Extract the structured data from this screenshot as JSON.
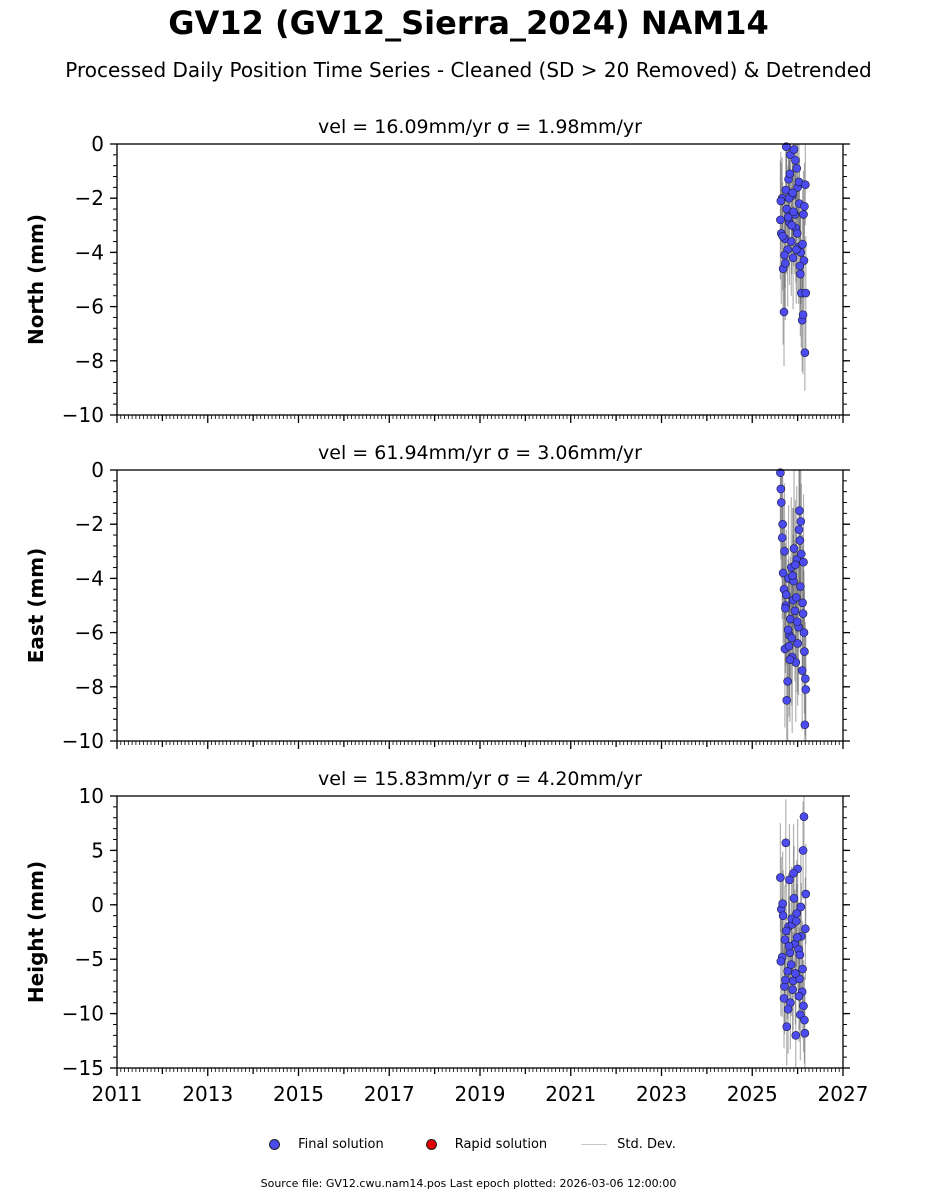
{
  "title": "GV12 (GV12_Sierra_2024) NAM14",
  "subtitle": "Processed Daily Position Time Series - Cleaned (SD > 20 Removed) & Detrended",
  "colors": {
    "final": "#4b4bf0",
    "rapid": "#e00000",
    "stddev": "#c8c8c8",
    "errbar": "#555555"
  },
  "legend": {
    "final": "Final solution",
    "rapid": "Rapid solution",
    "stddev": "Std. Dev."
  },
  "footer": "Source file: GV12.cwu.nam14.pos  Last epoch plotted: 2026-03-06 12:00:00",
  "chart_data": [
    {
      "type": "scatter",
      "panel_title": "vel = 16.09mm/yr   σ = 1.98mm/yr",
      "ylabel": "North (mm)",
      "xlim": [
        2011,
        2027
      ],
      "ylim": [
        -10,
        0
      ],
      "yticks": [
        0,
        -2,
        -4,
        -6,
        -8,
        -10
      ],
      "ytick_labels": [
        "0",
        "−2",
        "−4",
        "−6",
        "−8",
        "−10"
      ],
      "series": [
        {
          "x": [
            2025.62,
            2025.64,
            2025.66,
            2025.68,
            2025.7,
            2025.72,
            2025.74,
            2025.76,
            2025.78,
            2025.8,
            2025.82,
            2025.84,
            2025.86,
            2025.88,
            2025.9,
            2025.92,
            2025.94,
            2025.96,
            2025.98,
            2026.0,
            2026.02,
            2026.04,
            2026.06,
            2026.08,
            2026.1,
            2026.12,
            2026.14,
            2026.16,
            2026.18,
            2025.63,
            2025.67,
            2025.71,
            2025.75,
            2025.79,
            2025.83,
            2025.87,
            2025.91,
            2025.95,
            2025.99,
            2026.03,
            2026.07,
            2026.11,
            2026.15,
            2026.17,
            2025.73,
            2025.81,
            2025.89,
            2025.97,
            2026.05,
            2026.13
          ],
          "y": [
            -2.8,
            -3.3,
            -2.0,
            -4.6,
            -6.2,
            -3.5,
            -1.7,
            -2.4,
            -3.9,
            -1.3,
            -2.9,
            -0.4,
            -3.6,
            -1.9,
            -4.2,
            -0.2,
            -2.6,
            -3.1,
            -0.9,
            -1.6,
            -3.8,
            -2.2,
            -4.8,
            -5.5,
            -6.5,
            -6.3,
            -4.3,
            -7.7,
            -5.5,
            -2.1,
            -3.4,
            -4.1,
            -0.1,
            -2.7,
            -1.1,
            -3.0,
            -2.5,
            -0.6,
            -3.3,
            -1.4,
            -4.0,
            -3.7,
            -2.3,
            -1.5,
            -4.4,
            -2.0,
            -1.8,
            -3.9,
            -4.5,
            -2.6
          ],
          "sd": [
            2.2,
            2.6,
            1.5,
            2.8,
            2.0,
            1.8,
            1.9,
            2.4,
            2.1,
            1.6,
            2.3,
            1.4,
            2.0,
            1.7,
            1.9,
            1.5,
            2.2,
            2.0,
            1.8,
            1.6,
            2.1,
            1.7,
            2.3,
            2.0,
            1.9,
            2.2,
            1.8,
            1.4,
            2.1,
            1.8,
            2.0,
            2.2,
            1.5,
            1.9,
            1.7,
            1.8,
            2.0,
            1.6,
            2.1,
            1.7,
            1.9,
            2.0,
            1.6,
            1.5,
            2.1,
            1.8,
            1.7,
            2.0,
            1.9,
            1.6
          ]
        }
      ]
    },
    {
      "type": "scatter",
      "panel_title": "vel = 61.94mm/yr   σ = 3.06mm/yr",
      "ylabel": "East (mm)",
      "xlim": [
        2011,
        2027
      ],
      "ylim": [
        -10,
        0
      ],
      "yticks": [
        0,
        -2,
        -4,
        -6,
        -8,
        -10
      ],
      "ytick_labels": [
        "0",
        "−2",
        "−4",
        "−6",
        "−8",
        "−10"
      ],
      "series": [
        {
          "x": [
            2025.62,
            2025.64,
            2025.66,
            2025.68,
            2025.7,
            2025.72,
            2025.74,
            2025.76,
            2025.78,
            2025.8,
            2025.82,
            2025.84,
            2025.86,
            2025.88,
            2025.9,
            2025.92,
            2025.94,
            2025.96,
            2025.98,
            2026.0,
            2026.02,
            2026.04,
            2026.06,
            2026.08,
            2026.1,
            2026.12,
            2026.14,
            2026.16,
            2026.18,
            2025.63,
            2025.67,
            2025.71,
            2025.75,
            2025.79,
            2025.83,
            2025.87,
            2025.91,
            2025.95,
            2025.99,
            2026.03,
            2026.07,
            2026.11,
            2026.15,
            2026.17,
            2025.73,
            2025.81,
            2025.89,
            2025.97,
            2026.05,
            2026.13
          ],
          "y": [
            -0.1,
            -1.2,
            -2.5,
            -3.8,
            -4.4,
            -6.6,
            -5.0,
            -8.5,
            -7.8,
            -4.0,
            -6.1,
            -5.5,
            -3.6,
            -6.9,
            -4.8,
            -2.9,
            -5.2,
            -7.1,
            -3.3,
            -6.4,
            -5.8,
            -1.5,
            -4.3,
            -3.1,
            -7.4,
            -5.3,
            -6.0,
            -9.4,
            -8.1,
            -0.7,
            -2.0,
            -3.0,
            -4.6,
            -5.9,
            -7.0,
            -6.2,
            -4.1,
            -3.5,
            -5.6,
            -2.2,
            -1.9,
            -4.9,
            -6.7,
            -7.7,
            -5.1,
            -6.5,
            -3.9,
            -4.7,
            -2.6,
            -3.4
          ],
          "sd": [
            2.5,
            2.8,
            3.0,
            2.6,
            2.4,
            2.9,
            2.2,
            2.0,
            2.4,
            2.7,
            2.5,
            2.3,
            2.6,
            2.8,
            2.4,
            2.9,
            2.6,
            2.2,
            2.7,
            2.3,
            2.5,
            2.8,
            2.4,
            2.6,
            2.2,
            2.5,
            2.3,
            1.5,
            2.0,
            2.6,
            2.8,
            2.5,
            2.4,
            2.6,
            2.3,
            2.5,
            2.7,
            2.4,
            2.6,
            2.8,
            2.9,
            2.5,
            2.3,
            2.1,
            2.4,
            2.6,
            2.5,
            2.4,
            2.7,
            2.5
          ]
        }
      ]
    },
    {
      "type": "scatter",
      "panel_title": "vel = 15.83mm/yr   σ = 4.20mm/yr",
      "ylabel": "Height (mm)",
      "xlim": [
        2011,
        2027
      ],
      "ylim": [
        -15,
        10
      ],
      "yticks": [
        10,
        5,
        0,
        -5,
        -10,
        -15
      ],
      "ytick_labels": [
        "10",
        "5",
        "0",
        "−5",
        "−10",
        "−15"
      ],
      "xticks": [
        2011,
        2013,
        2015,
        2017,
        2019,
        2021,
        2023,
        2025,
        2027
      ],
      "xtick_labels": [
        "2011",
        "2013",
        "2015",
        "2017",
        "2019",
        "2021",
        "2023",
        "2025",
        "2027"
      ],
      "series": [
        {
          "x": [
            2025.62,
            2025.64,
            2025.66,
            2025.68,
            2025.7,
            2025.72,
            2025.74,
            2025.76,
            2025.78,
            2025.8,
            2025.82,
            2025.84,
            2025.86,
            2025.88,
            2025.9,
            2025.92,
            2025.94,
            2025.96,
            2025.98,
            2026.0,
            2026.02,
            2026.04,
            2026.06,
            2026.08,
            2026.1,
            2026.12,
            2026.14,
            2026.16,
            2026.18,
            2025.63,
            2025.67,
            2025.71,
            2025.75,
            2025.79,
            2025.83,
            2025.87,
            2025.91,
            2025.95,
            2025.99,
            2026.03,
            2026.07,
            2026.11,
            2026.15,
            2026.17,
            2025.73,
            2025.81,
            2025.89,
            2025.97,
            2026.05,
            2026.13
          ],
          "y": [
            2.5,
            -0.4,
            -4.8,
            -1.0,
            -8.6,
            -3.2,
            5.7,
            -11.2,
            -6.1,
            -2.0,
            2.3,
            -9.0,
            -5.5,
            -1.8,
            -7.0,
            0.6,
            -3.6,
            -12.0,
            -0.8,
            3.3,
            -4.1,
            -6.8,
            -10.1,
            -2.9,
            -8.0,
            5.0,
            8.1,
            -11.8,
            1.0,
            -5.2,
            0.1,
            -7.5,
            -2.4,
            -9.6,
            -4.4,
            -1.3,
            2.9,
            -6.3,
            -3.0,
            -8.4,
            -0.2,
            -5.9,
            -10.6,
            -2.2,
            -6.9,
            -3.8,
            -7.8,
            -1.5,
            -4.6,
            -9.3
          ],
          "sd": [
            5.0,
            4.8,
            5.5,
            4.2,
            4.6,
            5.0,
            4.0,
            3.6,
            4.4,
            4.9,
            5.1,
            4.3,
            4.7,
            5.2,
            4.5,
            4.8,
            5.0,
            3.8,
            4.9,
            4.6,
            4.4,
            4.7,
            4.2,
            4.9,
            4.3,
            4.5,
            3.0,
            3.5,
            4.6,
            5.0,
            4.8,
            4.4,
            4.9,
            4.1,
            4.6,
            4.8,
            4.5,
            4.7,
            4.9,
            4.2,
            4.8,
            4.4,
            4.0,
            4.7,
            4.3,
            4.6,
            4.5,
            4.8,
            4.6,
            4.2
          ]
        }
      ]
    }
  ]
}
